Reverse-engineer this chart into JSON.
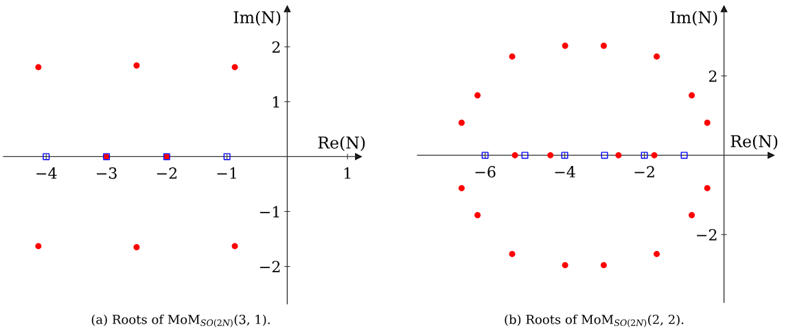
{
  "chart_data": [
    {
      "type": "scatter",
      "title": "(a) Roots of MoM$_{SO(2N)}$(3, 1).",
      "xlabel": "Re(N)",
      "ylabel": "Im(N)",
      "xlim": [
        -4.71,
        1.18
      ],
      "ylim": [
        -2.68,
        2.69
      ],
      "xticks": [
        -4,
        -3,
        -2,
        -1,
        1
      ],
      "yticks": [
        -2,
        -1,
        1,
        2
      ],
      "grid": false,
      "legend": false,
      "series": [
        {
          "color": "#ff0000",
          "marker": "circle",
          "x": [
            -4.13,
            -2.5,
            -0.87,
            -4.13,
            -2.5,
            -0.87,
            -3,
            -2
          ],
          "values": [
            1.63,
            1.66,
            1.63,
            -1.63,
            -1.65,
            -1.63,
            0,
            0
          ]
        },
        {
          "color": "#0000ff",
          "marker": "square",
          "x": [
            -4,
            -3,
            -2,
            -1
          ],
          "values": [
            0,
            0,
            0,
            0
          ]
        }
      ]
    },
    {
      "type": "scatter",
      "title": "(b) Roots of MoM$_{SO(2N)}$(2, 2).",
      "xlabel": "Re(N)",
      "ylabel": "Im(N)",
      "xlim": [
        -7.7,
        1.18
      ],
      "ylim": [
        -3.71,
        3.69
      ],
      "xticks": [
        -6,
        -4,
        -2
      ],
      "yticks": [
        -2,
        2
      ],
      "grid": false,
      "legend": false,
      "series": [
        {
          "color": "#ff0000",
          "marker": "circle",
          "x": [
            -5.32,
            -3.99,
            -3.02,
            -1.69,
            -6.19,
            -0.81,
            -6.59,
            -0.42,
            -6.59,
            -0.42,
            -6.19,
            -0.81,
            -5.32,
            -1.69,
            -3.99,
            -3.02,
            -5.25,
            -4.36,
            -2.65,
            -1.75
          ],
          "values": [
            2.49,
            2.76,
            2.76,
            2.49,
            1.51,
            1.51,
            0.82,
            0.82,
            -0.83,
            -0.83,
            -1.51,
            -1.51,
            -2.49,
            -2.49,
            -2.77,
            -2.77,
            0,
            0,
            0,
            0
          ]
        },
        {
          "color": "#0000ff",
          "marker": "square",
          "x": [
            -6,
            -5,
            -4,
            -3,
            -2,
            -1
          ],
          "values": [
            0,
            0,
            0,
            0,
            0,
            0
          ]
        }
      ]
    }
  ]
}
